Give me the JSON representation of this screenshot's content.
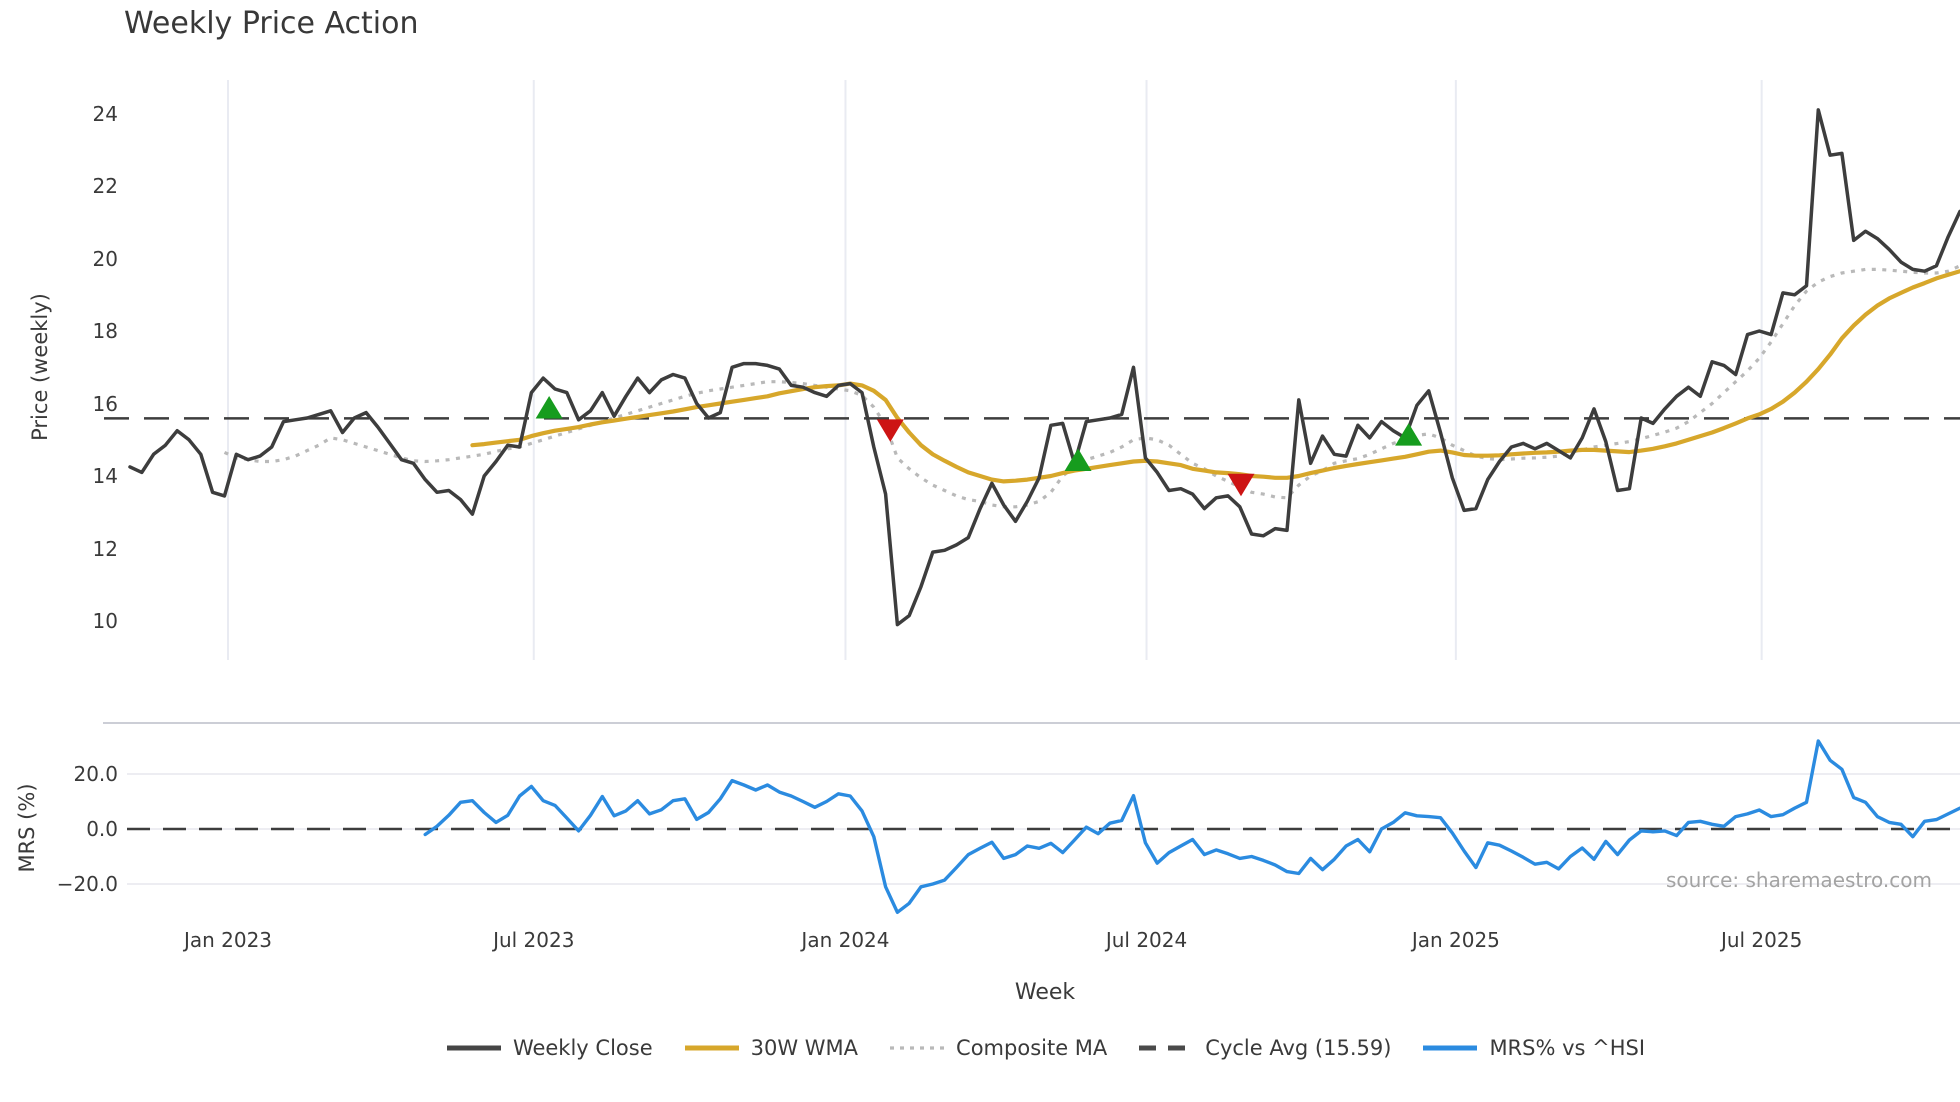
{
  "title": "Weekly Price Action",
  "source": "source: sharemaestro.com",
  "price_axis": {
    "label": "Price (weekly)",
    "ticks": [
      24,
      22,
      20,
      18,
      16,
      14,
      12,
      10
    ]
  },
  "mrs_axis": {
    "label": "MRS (%)",
    "ticks": [
      "20.0",
      "0.0",
      "−20.0"
    ],
    "tick_values": [
      20,
      0,
      -20
    ]
  },
  "x_axis": {
    "label": "Week",
    "ticks": [
      {
        "label": "Jan 2023",
        "week": 8.3
      },
      {
        "label": "Jul 2023",
        "week": 34.2
      },
      {
        "label": "Jan 2024",
        "week": 60.6
      },
      {
        "label": "Jul 2024",
        "week": 86.1
      },
      {
        "label": "Jan 2025",
        "week": 112.3
      },
      {
        "label": "Jul 2025",
        "week": 138.2
      }
    ]
  },
  "legend": [
    {
      "name": "weekly-close",
      "label": "Weekly Close",
      "style": "solid",
      "color": "#454545"
    },
    {
      "name": "wma",
      "label": "30W WMA",
      "style": "solid",
      "color": "#d7a72b"
    },
    {
      "name": "composite",
      "label": "Composite MA",
      "style": "dotted",
      "color": "#b9b9b9"
    },
    {
      "name": "cycle-avg",
      "label": "Cycle Avg (15.59)",
      "style": "dashed",
      "color": "#4a4a4a"
    },
    {
      "name": "mrs",
      "label": "MRS% vs ^HSI",
      "style": "solid",
      "color": "#2b8be0"
    }
  ],
  "colors": {
    "close": "#3d3d3d",
    "wma": "#d7a72b",
    "composite": "#b9b9b9",
    "cycle_avg": "#3d3d3d",
    "mrs": "#2b8be0",
    "buy_marker": "#169c1e",
    "sell_marker": "#cd1414",
    "gridline": "#e9ebf2",
    "mrs_gridline": "#ededf2",
    "mrs_top_spine": "#ccced6"
  },
  "chart_data": [
    {
      "type": "line",
      "title": "Weekly Price Action",
      "xlabel": "Week",
      "ylabel": "Price (weekly)",
      "ylim": [
        8.9,
        24.9
      ],
      "yticks": [
        10,
        12,
        14,
        16,
        18,
        20,
        22,
        24
      ],
      "x_range_weeks": [
        0,
        155
      ],
      "grid": "vertical-only",
      "legend_position": "bottom-center",
      "cycle_avg_value": 15.59,
      "series": [
        {
          "name": "Weekly Close",
          "style": "solid",
          "values": [
            14.25,
            14.1,
            14.6,
            14.85,
            15.25,
            15.0,
            14.6,
            13.55,
            13.45,
            14.6,
            14.45,
            14.55,
            14.8,
            15.5,
            15.55,
            15.6,
            15.7,
            15.8,
            15.2,
            15.6,
            15.75,
            15.35,
            14.9,
            14.45,
            14.35,
            13.9,
            13.55,
            13.6,
            13.35,
            12.95,
            14.0,
            14.4,
            14.85,
            14.8,
            16.3,
            16.7,
            16.4,
            16.3,
            15.55,
            15.8,
            16.3,
            15.65,
            16.2,
            16.7,
            16.3,
            16.65,
            16.8,
            16.7,
            16.0,
            15.6,
            15.75,
            17.0,
            17.1,
            17.1,
            17.05,
            16.95,
            16.5,
            16.45,
            16.3,
            16.2,
            16.5,
            16.55,
            16.3,
            14.8,
            13.5,
            9.9,
            10.15,
            10.95,
            11.9,
            11.95,
            12.1,
            12.3,
            13.1,
            13.8,
            13.2,
            12.75,
            13.3,
            13.95,
            15.4,
            15.45,
            14.35,
            15.5,
            15.55,
            15.6,
            15.7,
            17.0,
            14.5,
            14.1,
            13.6,
            13.65,
            13.5,
            13.1,
            13.4,
            13.45,
            13.15,
            12.4,
            12.35,
            12.55,
            12.5,
            16.1,
            14.35,
            15.1,
            14.6,
            14.55,
            15.4,
            15.05,
            15.5,
            15.25,
            15.05,
            15.95,
            16.35,
            15.2,
            13.95,
            13.05,
            13.1,
            13.9,
            14.4,
            14.8,
            14.9,
            14.75,
            14.9,
            14.7,
            14.5,
            15.05,
            15.85,
            14.95,
            13.6,
            13.65,
            15.6,
            15.45,
            15.85,
            16.2,
            16.45,
            16.2,
            17.15,
            17.05,
            16.8,
            17.9,
            18.0,
            17.9,
            19.05,
            19.0,
            19.25,
            24.1,
            22.85,
            22.9,
            20.5,
            20.75,
            20.55,
            20.25,
            19.9,
            19.7,
            19.65,
            19.8,
            20.6,
            21.3
          ]
        },
        {
          "name": "30W WMA",
          "style": "solid",
          "values": [
            null,
            null,
            null,
            null,
            null,
            null,
            null,
            null,
            null,
            null,
            null,
            null,
            null,
            null,
            null,
            null,
            null,
            null,
            null,
            null,
            null,
            null,
            null,
            null,
            null,
            null,
            null,
            null,
            null,
            14.85,
            14.88,
            14.92,
            14.96,
            15.0,
            15.1,
            15.18,
            15.25,
            15.3,
            15.35,
            15.42,
            15.48,
            15.53,
            15.58,
            15.63,
            15.68,
            15.73,
            15.78,
            15.84,
            15.9,
            15.95,
            16.0,
            16.05,
            16.1,
            16.15,
            16.2,
            16.28,
            16.34,
            16.4,
            16.45,
            16.48,
            16.5,
            16.55,
            16.5,
            16.35,
            16.1,
            15.6,
            15.2,
            14.85,
            14.6,
            14.42,
            14.25,
            14.1,
            14.0,
            13.9,
            13.85,
            13.87,
            13.9,
            13.95,
            14.0,
            14.08,
            14.15,
            14.2,
            14.25,
            14.3,
            14.35,
            14.4,
            14.42,
            14.4,
            14.35,
            14.3,
            14.2,
            14.15,
            14.1,
            14.08,
            14.05,
            14.0,
            13.98,
            13.95,
            13.95,
            14.0,
            14.08,
            14.15,
            14.22,
            14.28,
            14.33,
            14.38,
            14.43,
            14.48,
            14.53,
            14.6,
            14.67,
            14.7,
            14.65,
            14.58,
            14.56,
            14.56,
            14.57,
            14.6,
            14.62,
            14.64,
            14.65,
            14.67,
            14.7,
            14.72,
            14.72,
            14.7,
            14.68,
            14.66,
            14.7,
            14.75,
            14.82,
            14.9,
            15.0,
            15.1,
            15.2,
            15.32,
            15.45,
            15.59,
            15.7,
            15.85,
            16.05,
            16.3,
            16.6,
            16.95,
            17.35,
            17.8,
            18.15,
            18.45,
            18.7,
            18.9,
            19.05,
            19.2,
            19.32,
            19.45,
            19.55,
            19.65
          ]
        },
        {
          "name": "Composite MA",
          "style": "dotted",
          "values": [
            null,
            null,
            null,
            null,
            null,
            null,
            null,
            null,
            14.65,
            14.5,
            14.45,
            14.4,
            14.4,
            14.45,
            14.55,
            14.7,
            14.85,
            15.05,
            15.0,
            14.9,
            14.8,
            14.7,
            14.6,
            14.5,
            14.42,
            14.4,
            14.42,
            14.45,
            14.5,
            14.55,
            14.6,
            14.68,
            14.75,
            14.8,
            14.9,
            15.0,
            15.1,
            15.2,
            15.3,
            15.4,
            15.5,
            15.6,
            15.7,
            15.8,
            15.9,
            16.0,
            16.1,
            16.2,
            16.28,
            16.35,
            16.4,
            16.45,
            16.5,
            16.55,
            16.6,
            16.6,
            16.58,
            16.55,
            16.5,
            16.45,
            16.4,
            16.35,
            16.22,
            15.9,
            15.4,
            14.5,
            14.2,
            13.95,
            13.75,
            13.6,
            13.45,
            13.35,
            13.3,
            13.2,
            13.15,
            13.15,
            13.2,
            13.3,
            13.55,
            14.0,
            14.25,
            14.45,
            14.55,
            14.65,
            14.8,
            15.0,
            15.05,
            15.0,
            14.85,
            14.6,
            14.35,
            14.2,
            14.0,
            13.85,
            13.7,
            13.55,
            13.5,
            13.42,
            13.4,
            13.75,
            14.0,
            14.15,
            14.35,
            14.42,
            14.48,
            14.6,
            14.75,
            14.9,
            15.0,
            15.12,
            15.16,
            15.05,
            14.85,
            14.7,
            14.55,
            14.48,
            14.45,
            14.47,
            14.49,
            14.5,
            14.52,
            14.55,
            14.65,
            14.72,
            14.8,
            14.85,
            14.9,
            14.95,
            15.03,
            15.12,
            15.21,
            15.32,
            15.5,
            15.75,
            16.0,
            16.3,
            16.6,
            16.9,
            17.25,
            17.7,
            18.2,
            18.7,
            19.1,
            19.35,
            19.5,
            19.6,
            19.65,
            19.7,
            19.7,
            19.68,
            19.65,
            19.62,
            19.6,
            19.6,
            19.65,
            19.8
          ]
        },
        {
          "name": "Cycle Avg (15.59)",
          "style": "dashed",
          "constant": 15.59
        }
      ],
      "signals": {
        "buy": [
          {
            "week": 35.5,
            "price": 15.85
          },
          {
            "week": 80.3,
            "price": 14.4
          },
          {
            "week": 108.3,
            "price": 15.1
          }
        ],
        "sell": [
          {
            "week": 64.4,
            "price": 15.3
          },
          {
            "week": 94.1,
            "price": 13.8
          }
        ]
      }
    },
    {
      "type": "line",
      "ylabel": "MRS (%)",
      "ylim": [
        -33,
        39
      ],
      "yticks": [
        20,
        0,
        -20
      ],
      "zero_line": 0,
      "series": [
        {
          "name": "MRS% vs ^HSI",
          "style": "solid",
          "values": [
            null,
            null,
            null,
            null,
            null,
            null,
            null,
            null,
            null,
            null,
            null,
            null,
            null,
            null,
            null,
            null,
            null,
            null,
            null,
            null,
            null,
            null,
            null,
            null,
            null,
            -2,
            1,
            5,
            9.7,
            10.3,
            6,
            2.4,
            5,
            12,
            15.5,
            10.3,
            8.6,
            4,
            -0.7,
            5,
            11.8,
            4.8,
            6.6,
            10.3,
            5.5,
            7,
            10.3,
            11,
            3.5,
            6,
            11,
            17.6,
            16,
            14.2,
            16,
            13.4,
            12,
            10,
            7.9,
            10,
            12.8,
            12,
            6.6,
            -2.8,
            -21,
            -30.3,
            -27,
            -21,
            -20,
            -18.6,
            -14,
            -9.3,
            -7,
            -4.8,
            -10.7,
            -9.3,
            -6.2,
            -7,
            -5.2,
            -8.6,
            -4,
            0.7,
            -1.7,
            2.1,
            3.1,
            12.1,
            -5,
            -12.4,
            -8.6,
            -6.2,
            -3.8,
            -9.3,
            -7.6,
            -9,
            -10.7,
            -10,
            -11.4,
            -13.1,
            -15.5,
            -16.2,
            -10.7,
            -14.8,
            -11,
            -6.2,
            -3.8,
            -8.3,
            0,
            2.4,
            5.9,
            4.8,
            4.5,
            4.1,
            -1.4,
            -8,
            -14,
            -5,
            -5.9,
            -8,
            -10.3,
            -12.8,
            -12.1,
            -14.5,
            -10,
            -6.9,
            -11,
            -4.5,
            -9.3,
            -4,
            -0.7,
            -1,
            -0.7,
            -2.4,
            2.4,
            2.8,
            1.7,
            1,
            4.5,
            5.5,
            6.9,
            4.5,
            5.2,
            7.6,
            9.7,
            32,
            25,
            21.7,
            11.4,
            9.7,
            4.5,
            2.4,
            1.7,
            -2.8,
            2.8,
            3.4,
            5.5,
            7.6
          ]
        }
      ]
    }
  ]
}
